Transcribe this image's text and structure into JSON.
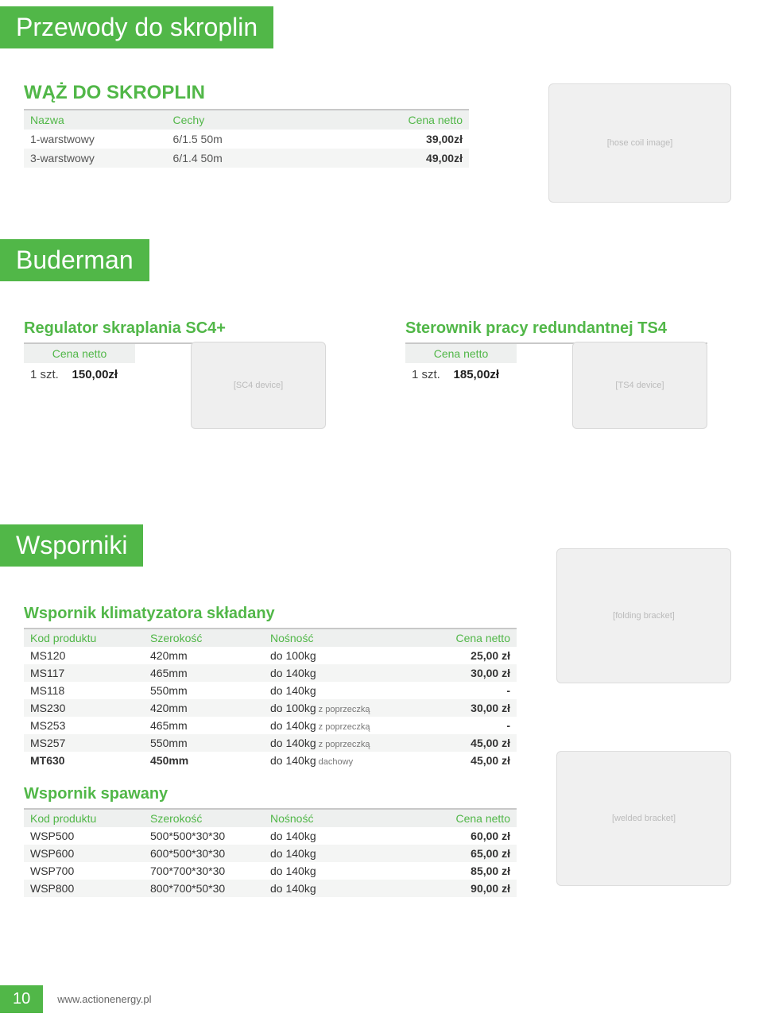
{
  "colors": {
    "accent": "#51b748",
    "th_bg": "#eef0ef",
    "row_alt_bg": "#f4f5f4",
    "rule": "#c8c8c8",
    "text": "#333333",
    "muted": "#666666"
  },
  "section1": {
    "title_bar": "Przewody do skroplin",
    "subtitle": "WĄŻ DO SKROPLIN",
    "headers": {
      "c1": "Nazwa",
      "c2": "Cechy",
      "c3": "Cena netto"
    },
    "rows": [
      {
        "c1": "1-warstwowy",
        "c2": "6/1.5 50m",
        "c3": "39,00zł"
      },
      {
        "c1": "3-warstwowy",
        "c2": "6/1.4 50m",
        "c3": "49,00zł"
      }
    ]
  },
  "section2": {
    "title_bar": "Buderman",
    "left": {
      "title": "Regulator skraplania SC4+",
      "header": "Cena netto",
      "qty": "1 szt.",
      "price": "150,00zł"
    },
    "right": {
      "title": "Sterownik pracy redundantnej TS4",
      "header": "Cena netto",
      "qty": "1 szt.",
      "price": "185,00zł"
    }
  },
  "section3": {
    "title_bar": "Wsporniki",
    "sub1": {
      "title": "Wspornik klimatyzatora składany",
      "headers": {
        "c1": "Kod produktu",
        "c2": "Szerokość",
        "c3": "Nośność",
        "c4": "Cena netto"
      },
      "rows": [
        {
          "c1": "MS120",
          "c2": "420mm",
          "c3": "do 100kg",
          "note": "",
          "c4": "25,00 zł",
          "bold": false
        },
        {
          "c1": "MS117",
          "c2": "465mm",
          "c3": "do 140kg",
          "note": "",
          "c4": "30,00 zł",
          "bold": false
        },
        {
          "c1": "MS118",
          "c2": "550mm",
          "c3": "do 140kg",
          "note": "",
          "c4": "-",
          "bold": false
        },
        {
          "c1": "MS230",
          "c2": "420mm",
          "c3": "do 100kg",
          "note": " z poprzeczką",
          "c4": "30,00 zł",
          "bold": false
        },
        {
          "c1": "MS253",
          "c2": "465mm",
          "c3": "do 140kg",
          "note": " z poprzeczką",
          "c4": "-",
          "bold": false
        },
        {
          "c1": "MS257",
          "c2": "550mm",
          "c3": "do 140kg",
          "note": " z poprzeczką",
          "c4": "45,00 zł",
          "bold": false
        },
        {
          "c1": "MT630",
          "c2": "450mm",
          "c3": "do 140kg",
          "note": " dachowy",
          "c4": "45,00 zł",
          "bold": true
        }
      ]
    },
    "sub2": {
      "title": "Wspornik spawany",
      "headers": {
        "c1": "Kod produktu",
        "c2": "Szerokość",
        "c3": "Nośność",
        "c4": "Cena netto"
      },
      "rows": [
        {
          "c1": "WSP500",
          "c2": "500*500*30*30",
          "c3": "do 140kg",
          "c4": "60,00 zł"
        },
        {
          "c1": "WSP600",
          "c2": "600*500*30*30",
          "c3": "do 140kg",
          "c4": "65,00 zł"
        },
        {
          "c1": "WSP700",
          "c2": "700*700*30*30",
          "c3": "do 140kg",
          "c4": "85,00 zł"
        },
        {
          "c1": "WSP800",
          "c2": "800*700*50*30",
          "c3": "do 140kg",
          "c4": "90,00 zł"
        }
      ]
    }
  },
  "footer": {
    "page": "10",
    "url": "www.actionenergy.pl"
  },
  "placeholders": {
    "hose": "[hose coil image]",
    "sc4": "[SC4 device]",
    "ts4": "[TS4 device]",
    "bracket1": "[folding bracket]",
    "bracket2": "[welded bracket]"
  }
}
